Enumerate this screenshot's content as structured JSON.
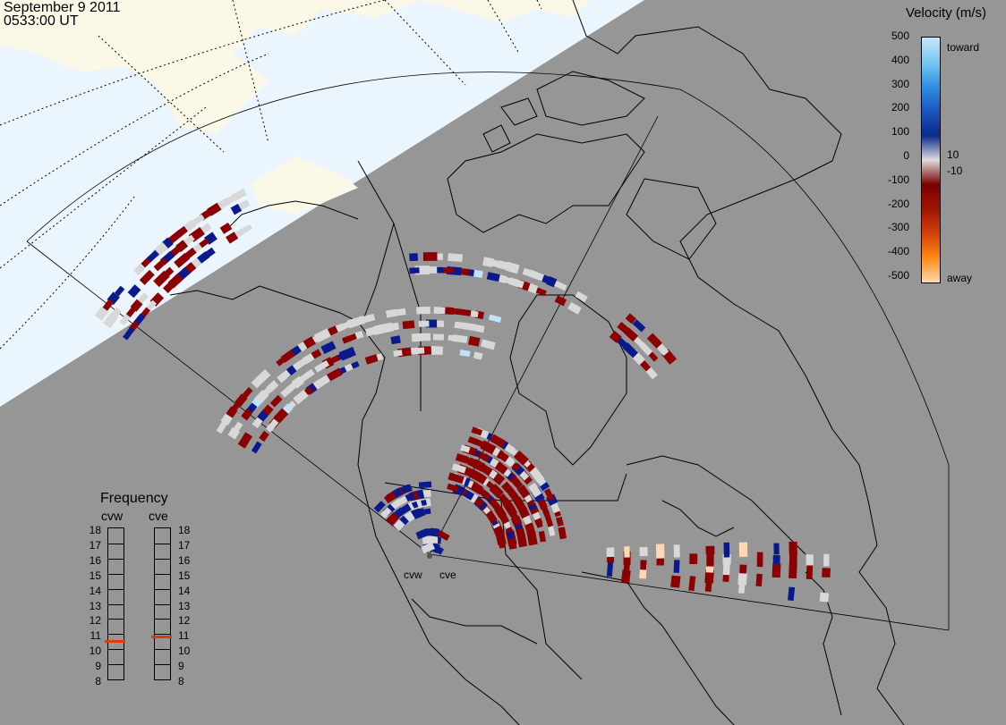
{
  "header": {
    "date": "September  9 2011",
    "time": "0533:00 UT"
  },
  "colorbar": {
    "title": "Velocity (m/s)",
    "ticks": [
      "500",
      "400",
      "300",
      "200",
      "100",
      "0",
      "-100",
      "-200",
      "-300",
      "-400",
      "-500"
    ],
    "side_labels": [
      "toward",
      "10",
      "-10",
      "away"
    ],
    "stops": [
      "#c8e6fa",
      "#78c8f5",
      "#2f8fe0",
      "#1c56c0",
      "#0b2a8c",
      "#dcdcdc",
      "#7a0000",
      "#a01500",
      "#d2420a",
      "#ff8a14",
      "#ffd8b0"
    ]
  },
  "frequency": {
    "title": "Frequency",
    "radars": [
      "cvw",
      "cve"
    ],
    "scale": [
      "18",
      "17",
      "16",
      "15",
      "14",
      "13",
      "12",
      "11",
      "10",
      "9",
      "8"
    ],
    "cvw_mhz": 10.5,
    "cve_mhz": 10.8,
    "marker_color": "#e03a0c"
  },
  "map": {
    "night_color": "#969696",
    "day_ocean": "#eaf5fe",
    "day_land": "#fbf8e8",
    "gate_colors": {
      "dark_red": "#8b0000",
      "gray": "#d8d8d8",
      "navy": "#0a1a8c",
      "light_blue": "#bfe3fa",
      "peach": "#ffd7b5",
      "orange": "#f08a20"
    },
    "radar_labels": [
      "cvw",
      "cve"
    ]
  }
}
